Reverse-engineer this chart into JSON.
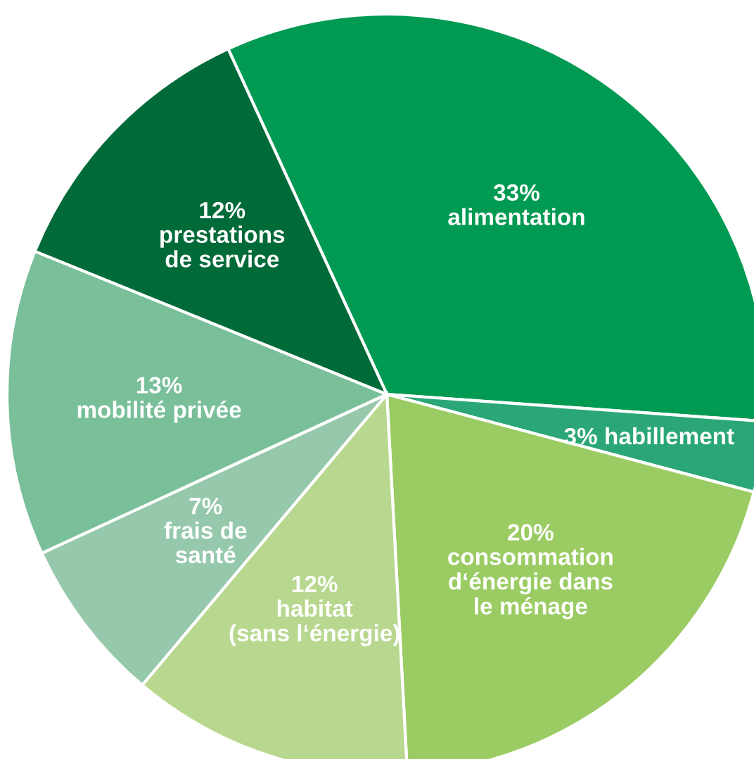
{
  "chart_data": {
    "type": "pie",
    "categories": [
      "alimentation",
      "habillement",
      "consommation\nd‘énergie dans\nle ménage",
      "habitat\n(sans l‘énergie)",
      "frais de\nsanté",
      "mobilité privée",
      "prestations\nde service"
    ],
    "values": [
      33,
      3,
      20,
      12,
      7,
      13,
      12
    ],
    "value_labels": [
      "33%",
      "3%",
      "20%",
      "12%",
      "7%",
      "13%",
      "12%"
    ],
    "colors": [
      "#009a53",
      "#2ba777",
      "#9bcc64",
      "#b8d88f",
      "#96c8ac",
      "#79bf9a",
      "#006a39"
    ]
  }
}
